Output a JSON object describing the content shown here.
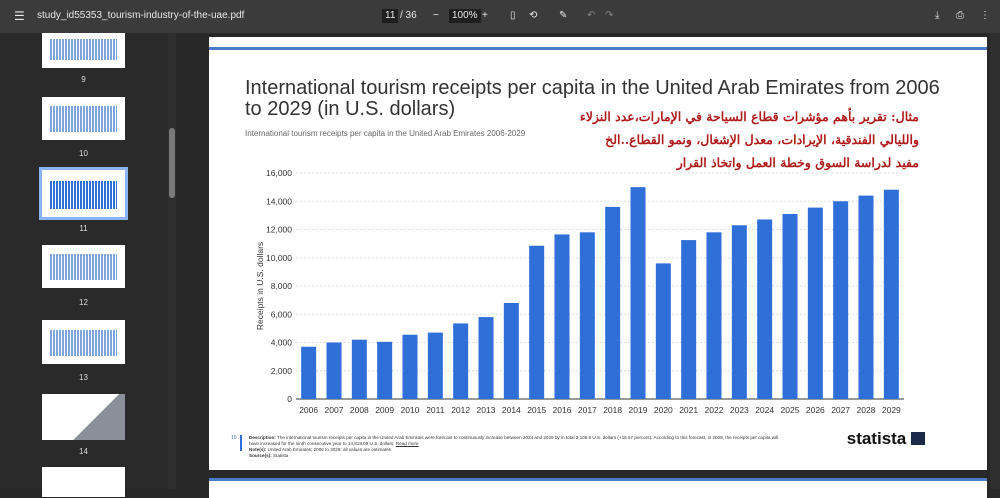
{
  "toolbar": {
    "filename": "study_id55353_tourism-industry-of-the-uae.pdf",
    "current_page": "11",
    "total_pages": "/ 36",
    "zoom": "100%"
  },
  "sidebar": {
    "thumbnails": [
      {
        "label": "9"
      },
      {
        "label": "10"
      },
      {
        "label": "11",
        "selected": true
      },
      {
        "label": "12"
      },
      {
        "label": "13"
      },
      {
        "label": "14"
      }
    ]
  },
  "page": {
    "title": "International tourism receipts per capita in the United Arab Emirates from 2006 to 2029 (in U.S. dollars)",
    "subtitle": "International tourism receipts per capita in the United Arab Emirates 2006-2029",
    "arabic_lines": [
      "مثال: تقرير بأهم مؤشرات قطاع السياحة في الإمارات،عدد النزلاء",
      "والليالي الفندقية، الإيرادات، معدل الإشغال، ونمو القطاع..الخ",
      "مفيد لدراسة السوق وخطة العمل واتخاذ القرار"
    ],
    "page_number": "10",
    "description_label": "Description:",
    "description": "The international tourism receipts per capita in the United Arab Emirates were forecast to continuously increase between 2024 and 2029 by in total 2,106.9 U.S. dollars (+16.57 percent). According to this forecast, in 2029, the receipts per capita will have increased for the ninth consecutive year to 14,818.09 U.S. dollars.",
    "read_more": "Read more",
    "note_label": "Note(s):",
    "note": "United Arab Emirates; 2006 to 2029; all values are estimates",
    "source_label": "Source(s):",
    "source": "Statista",
    "logo": "statista"
  },
  "chart_data": {
    "type": "bar",
    "title": "International tourism receipts per capita in the United Arab Emirates from 2006 to 2029 (in U.S. dollars)",
    "ylabel": "Receipts in U.S. dollars",
    "xlabel": "",
    "ylim": [
      0,
      16000
    ],
    "yticks": [
      "0",
      "2,000",
      "4,000",
      "6,000",
      "8,000",
      "10,000",
      "12,000",
      "14,000",
      "16,000"
    ],
    "grid": true,
    "color": "#2f6fd8",
    "categories": [
      "2006",
      "2007",
      "2008",
      "2009",
      "2010",
      "2011",
      "2012",
      "2013",
      "2014",
      "2015",
      "2016",
      "2017",
      "2018",
      "2019",
      "2020",
      "2021",
      "2022",
      "2023",
      "2024",
      "2025",
      "2026",
      "2027",
      "2028",
      "2029"
    ],
    "values": [
      3700,
      4000,
      4200,
      4050,
      4550,
      4700,
      5350,
      5800,
      6800,
      10850,
      11650,
      11800,
      13600,
      15000,
      9600,
      11250,
      11800,
      12300,
      12711,
      13100,
      13550,
      14000,
      14400,
      14818
    ]
  }
}
